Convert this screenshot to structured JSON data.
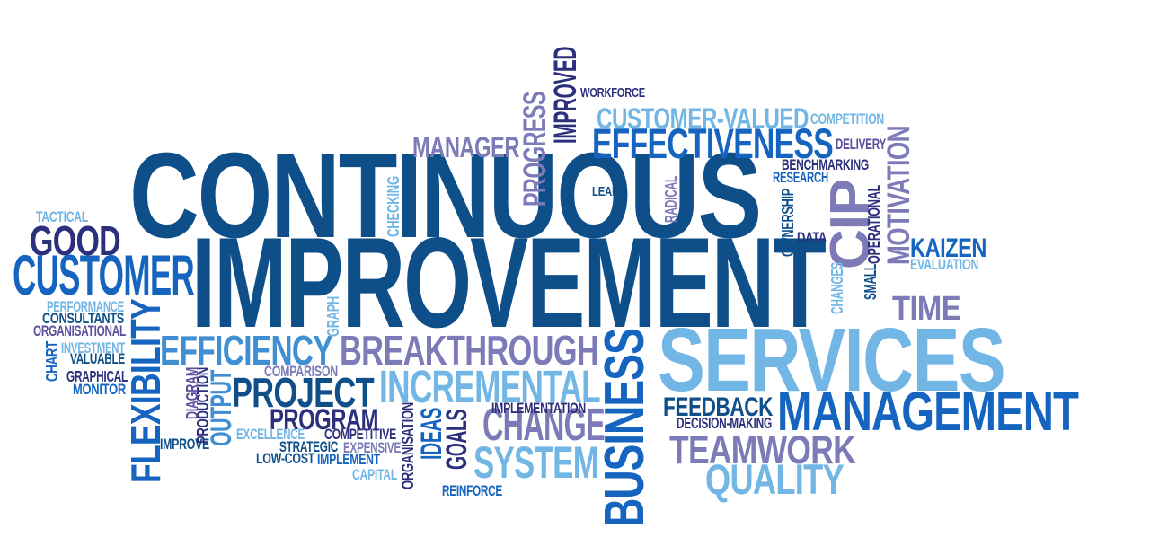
{
  "palette": {
    "navy": "#0e4f8a",
    "blue": "#1565c0",
    "azure": "#3f8fd2",
    "sky": "#72b6e6",
    "lavender": "#7d7ab8",
    "indigo": "#2b2f7c",
    "purple": "#5d4f9c"
  },
  "words": [
    {
      "id": "continuous",
      "text": "CONTINUOUS",
      "color": "navy"
    },
    {
      "id": "improvement",
      "text": "IMPROVEMENT",
      "color": "navy"
    },
    {
      "id": "services",
      "text": "SERVICES",
      "color": "sky"
    },
    {
      "id": "management",
      "text": "MANAGEMENT",
      "color": "blue"
    },
    {
      "id": "customer",
      "text": "CUSTOMER",
      "color": "blue"
    },
    {
      "id": "good",
      "text": "GOOD",
      "color": "indigo"
    },
    {
      "id": "tactical",
      "text": "TACTICAL",
      "color": "sky"
    },
    {
      "id": "efficiency",
      "text": "EFFICIENCY",
      "color": "azure"
    },
    {
      "id": "breakthrough",
      "text": "BREAKTHROUGH",
      "color": "lavender"
    },
    {
      "id": "project",
      "text": "PROJECT",
      "color": "navy"
    },
    {
      "id": "incremental",
      "text": "INCREMENTAL",
      "color": "sky"
    },
    {
      "id": "change",
      "text": "CHANGE",
      "color": "lavender"
    },
    {
      "id": "system",
      "text": "SYSTEM",
      "color": "sky"
    },
    {
      "id": "program",
      "text": "PROGRAM",
      "color": "indigo"
    },
    {
      "id": "teamwork",
      "text": "TEAMWORK",
      "color": "lavender"
    },
    {
      "id": "quality",
      "text": "QUALITY",
      "color": "sky"
    },
    {
      "id": "feedback",
      "text": "FEEDBACK",
      "color": "navy"
    },
    {
      "id": "decision-making",
      "text": "DECISION-MAKING",
      "color": "indigo"
    },
    {
      "id": "time",
      "text": "TIME",
      "color": "lavender"
    },
    {
      "id": "kaizen",
      "text": "KAIZEN",
      "color": "blue"
    },
    {
      "id": "evaluation",
      "text": "EVALUATION",
      "color": "sky"
    },
    {
      "id": "effectiveness",
      "text": "EFFECTIVENESS",
      "color": "blue"
    },
    {
      "id": "customer-valued",
      "text": "CUSTOMER-VALUED",
      "color": "sky"
    },
    {
      "id": "competition",
      "text": "COMPETITION",
      "color": "sky"
    },
    {
      "id": "delivery",
      "text": "DELIVERY",
      "color": "purple"
    },
    {
      "id": "benchmarking",
      "text": "BENCHMARKING",
      "color": "indigo"
    },
    {
      "id": "research",
      "text": "RESEARCH",
      "color": "blue"
    },
    {
      "id": "manager",
      "text": "MANAGER",
      "color": "lavender"
    },
    {
      "id": "workforce",
      "text": "WORKFORCE",
      "color": "indigo"
    },
    {
      "id": "lean",
      "text": "LEAN",
      "color": "navy"
    },
    {
      "id": "data",
      "text": "DATA",
      "color": "indigo"
    },
    {
      "id": "performance",
      "text": "PERFORMANCE",
      "color": "sky"
    },
    {
      "id": "consultants",
      "text": "CONSULTANTS",
      "color": "navy"
    },
    {
      "id": "organisational",
      "text": "ORGANISATIONAL",
      "color": "purple"
    },
    {
      "id": "investment",
      "text": "INVESTMENT",
      "color": "sky"
    },
    {
      "id": "valuable",
      "text": "VALUABLE",
      "color": "navy"
    },
    {
      "id": "graphical",
      "text": "GRAPHICAL",
      "color": "indigo"
    },
    {
      "id": "monitor",
      "text": "MONITOR",
      "color": "blue"
    },
    {
      "id": "comparison",
      "text": "COMPARISON",
      "color": "lavender"
    },
    {
      "id": "excellence",
      "text": "EXCELLENCE",
      "color": "sky"
    },
    {
      "id": "competitive",
      "text": "COMPETITIVE",
      "color": "indigo"
    },
    {
      "id": "strategic",
      "text": "STRATEGIC",
      "color": "navy"
    },
    {
      "id": "expensive",
      "text": "EXPENSIVE",
      "color": "lavender"
    },
    {
      "id": "low-cost",
      "text": "LOW-COST",
      "color": "navy"
    },
    {
      "id": "implement",
      "text": "IMPLEMENT",
      "color": "blue"
    },
    {
      "id": "capital",
      "text": "CAPITAL",
      "color": "sky"
    },
    {
      "id": "improve",
      "text": "IMPROVE",
      "color": "navy"
    },
    {
      "id": "implementation",
      "text": "IMPLEMENTATION",
      "color": "indigo"
    },
    {
      "id": "reinforce",
      "text": "REINFORCE",
      "color": "blue"
    },
    {
      "id": "flexibility",
      "text": "FLEXIBILITY",
      "color": "blue"
    },
    {
      "id": "business",
      "text": "BUSINESS",
      "color": "blue"
    },
    {
      "id": "progress",
      "text": "PROGRESS",
      "color": "lavender"
    },
    {
      "id": "improved",
      "text": "IMPROVED",
      "color": "indigo"
    },
    {
      "id": "cip",
      "text": "CIP",
      "color": "lavender"
    },
    {
      "id": "motivation",
      "text": "MOTIVATION",
      "color": "lavender"
    },
    {
      "id": "checking",
      "text": "CHECKING",
      "color": "sky"
    },
    {
      "id": "radical",
      "text": "RADICAL",
      "color": "lavender"
    },
    {
      "id": "ownership",
      "text": "OWNERSHIP",
      "color": "navy"
    },
    {
      "id": "operational",
      "text": "OPERATIONAL",
      "color": "indigo"
    },
    {
      "id": "changes",
      "text": "CHANGES",
      "color": "sky"
    },
    {
      "id": "small",
      "text": "SMALL",
      "color": "navy"
    },
    {
      "id": "graph",
      "text": "GRAPH",
      "color": "sky"
    },
    {
      "id": "chart",
      "text": "CHART",
      "color": "blue"
    },
    {
      "id": "output",
      "text": "OUTPUT",
      "color": "azure"
    },
    {
      "id": "production",
      "text": "PRODUCTION",
      "color": "indigo"
    },
    {
      "id": "diagram",
      "text": "DIAGRAM",
      "color": "purple"
    },
    {
      "id": "ideas",
      "text": "IDEAS",
      "color": "blue"
    },
    {
      "id": "goals",
      "text": "GOALS",
      "color": "indigo"
    },
    {
      "id": "organisation",
      "text": "ORGANISATION",
      "color": "indigo"
    }
  ]
}
